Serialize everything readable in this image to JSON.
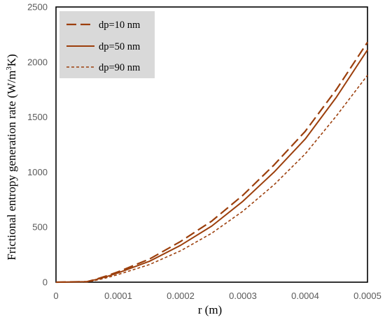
{
  "chart_data": {
    "type": "line",
    "title": "",
    "xlabel": "r (m)",
    "ylabel_main": "Frictional entropy generation rate (W/m",
    "ylabel_sup": "3",
    "ylabel_end": "K)",
    "xlim": [
      0,
      0.0005
    ],
    "ylim": [
      0,
      2500
    ],
    "x_ticks": [
      0,
      0.0001,
      0.0002,
      0.0003,
      0.0004,
      0.0005
    ],
    "x_tick_labels": [
      "0",
      "0.0001",
      "0.0002",
      "0.0003",
      "0.0004",
      "0.0005"
    ],
    "y_ticks": [
      0,
      500,
      1000,
      1500,
      2000,
      2500
    ],
    "y_tick_labels": [
      "0",
      "500",
      "1000",
      "1500",
      "2000",
      "2500"
    ],
    "grid": false,
    "legend_position": "top-left",
    "colors": {
      "series": "#9C3F0C",
      "legend_bg": "#D9D9D9",
      "axis": "#000000",
      "ticks": "#595959"
    },
    "series": [
      {
        "name": "dp=10 nm",
        "style": "long-dash",
        "points": [
          [
            0,
            0
          ],
          [
            5e-05,
            5
          ],
          [
            6e-05,
            20
          ],
          [
            8e-05,
            55
          ],
          [
            0.0001,
            95
          ],
          [
            0.00015,
            210
          ],
          [
            0.0002,
            370
          ],
          [
            0.00025,
            555
          ],
          [
            0.0003,
            790
          ],
          [
            0.00035,
            1065
          ],
          [
            0.0004,
            1370
          ],
          [
            0.00045,
            1750
          ],
          [
            0.0005,
            2180
          ]
        ]
      },
      {
        "name": "dp=50 nm",
        "style": "solid",
        "points": [
          [
            0,
            0
          ],
          [
            5e-05,
            5
          ],
          [
            6e-05,
            18
          ],
          [
            8e-05,
            48
          ],
          [
            0.0001,
            85
          ],
          [
            0.00015,
            190
          ],
          [
            0.0002,
            335
          ],
          [
            0.00025,
            510
          ],
          [
            0.0003,
            735
          ],
          [
            0.00035,
            1000
          ],
          [
            0.0004,
            1300
          ],
          [
            0.00045,
            1680
          ],
          [
            0.0005,
            2110
          ]
        ]
      },
      {
        "name": "dp=90 nm",
        "style": "short-dash",
        "points": [
          [
            0,
            0
          ],
          [
            5e-05,
            3
          ],
          [
            6e-05,
            12
          ],
          [
            8e-05,
            38
          ],
          [
            0.0001,
            70
          ],
          [
            0.00015,
            160
          ],
          [
            0.0002,
            285
          ],
          [
            0.00025,
            445
          ],
          [
            0.0003,
            645
          ],
          [
            0.00035,
            885
          ],
          [
            0.0004,
            1165
          ],
          [
            0.00045,
            1510
          ],
          [
            0.0005,
            1880
          ]
        ]
      }
    ]
  }
}
